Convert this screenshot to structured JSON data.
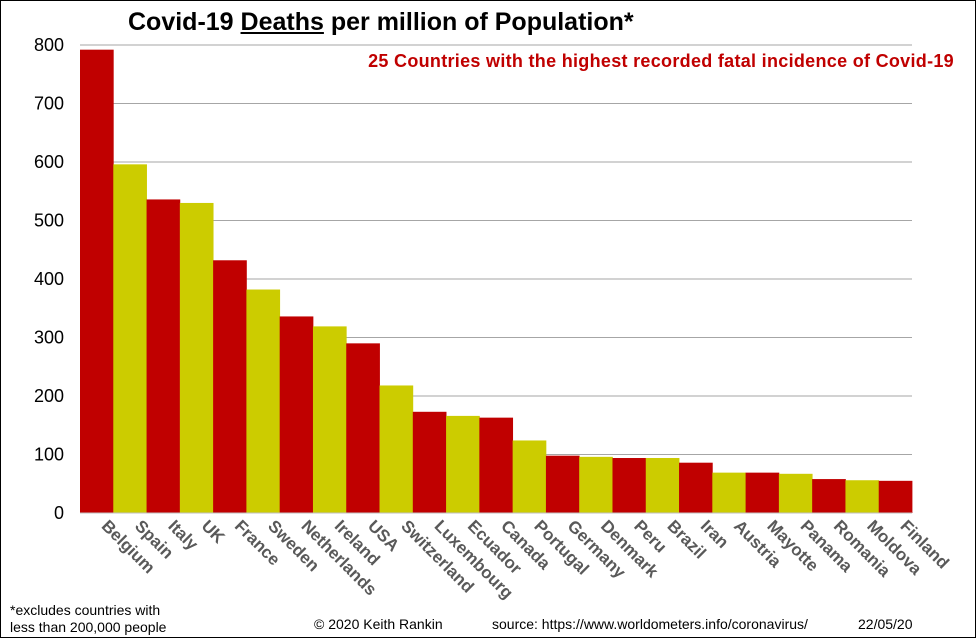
{
  "chart_data": {
    "type": "bar",
    "title_parts": [
      "Covid-19 ",
      "Deaths",
      " per million of Population*"
    ],
    "subtitle": "25 Countries with the highest recorded fatal incidence of Covid-19",
    "categories": [
      "Belgium",
      "Spain",
      "Italy",
      "UK",
      "France",
      "Sweden",
      "Netherlands",
      "Ireland",
      "USA",
      "Switzerland",
      "Luxembourg",
      "Ecuador",
      "Canada",
      "Portugal",
      "Germany",
      "Denmark",
      "Peru",
      "Brazil",
      "Iran",
      "Austria",
      "Mayotte",
      "Panama",
      "Romania",
      "Moldova",
      "Finland"
    ],
    "values": [
      792,
      596,
      536,
      530,
      432,
      382,
      336,
      319,
      290,
      218,
      173,
      166,
      163,
      124,
      98,
      96,
      94,
      94,
      86,
      69,
      69,
      67,
      58,
      56,
      55
    ],
    "ylim": [
      0,
      800
    ],
    "yticks": [
      0,
      100,
      200,
      300,
      400,
      500,
      600,
      700,
      800
    ],
    "xlabel": "",
    "ylabel": "",
    "grid": true,
    "legend": "none",
    "colors": {
      "odd": "#c00000",
      "even": "#cccc00",
      "subtitle": "#c00000",
      "grid": "#a6a6a6",
      "tick_label": "#595959"
    }
  },
  "footer": {
    "footnote_line1": "*excludes countries with",
    "footnote_line2": "less than 200,000 people",
    "copyright": "© 2020  Keith Rankin",
    "source": "source: https://www.worldometers.info/coronavirus/",
    "date": "22/05/20"
  }
}
